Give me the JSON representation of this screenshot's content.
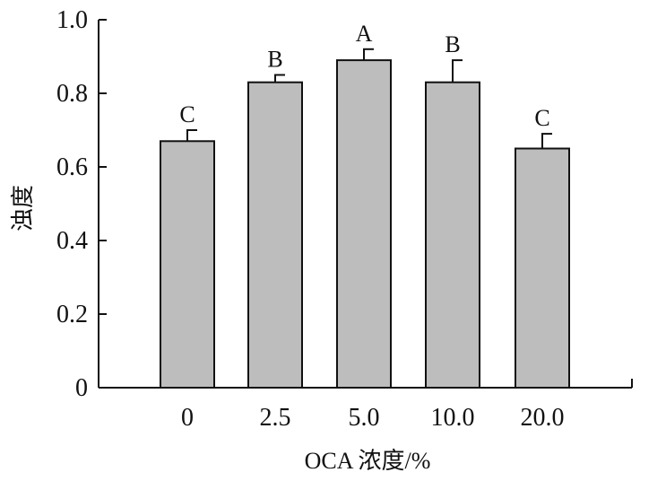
{
  "chart_data": {
    "type": "bar",
    "categories": [
      "0",
      "2.5",
      "5.0",
      "10.0",
      "20.0"
    ],
    "values": [
      0.67,
      0.83,
      0.89,
      0.83,
      0.65
    ],
    "errors": [
      0.03,
      0.02,
      0.03,
      0.06,
      0.04
    ],
    "significance_letters": [
      "C",
      "B",
      "A",
      "B",
      "C"
    ],
    "title": "",
    "xlabel": "OCA 浓度/%",
    "ylabel": "浊度",
    "ylim": [
      0,
      1.0
    ],
    "yticks": [
      0,
      0.2,
      0.4,
      0.6,
      0.8,
      1.0
    ],
    "ytick_labels": [
      "0",
      "0.2",
      "0.4",
      "0.6",
      "0.8",
      "1.0"
    ],
    "grid": false,
    "colors": {
      "bar_fill": "#bdbdbd",
      "outline": "#111111"
    }
  }
}
